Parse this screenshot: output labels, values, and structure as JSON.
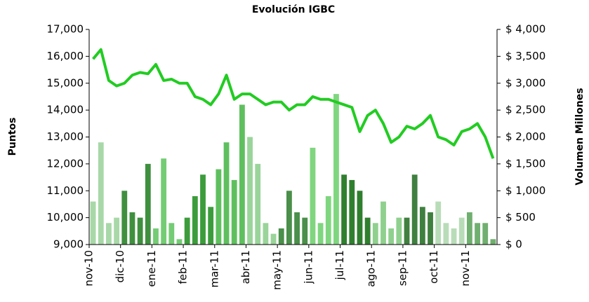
{
  "chart_data": {
    "type": "bar_line",
    "title": "Evolución IGBC",
    "ylabel": "Puntos",
    "y2label": "Volumen Millones",
    "categories": [
      "nov-10",
      null,
      null,
      null,
      "dic-10",
      null,
      null,
      null,
      "ene-11",
      null,
      null,
      null,
      "feb-11",
      null,
      null,
      null,
      "mar-11",
      null,
      null,
      null,
      "abr-11",
      null,
      null,
      null,
      "may-11",
      null,
      null,
      null,
      "jun-11",
      null,
      null,
      null,
      "jul-11",
      null,
      null,
      null,
      "ago-11",
      null,
      null,
      null,
      "sep-11",
      null,
      null,
      null,
      "oct-11",
      null,
      null,
      null,
      "nov-11",
      null,
      null,
      null
    ],
    "series": [
      {
        "name": "Volumen",
        "type": "bar",
        "axis": "y2",
        "colors": [
          "#a8d8a8",
          "#a8d8a8",
          "#a8d8a8",
          "#a8d8a8",
          "#3f8f3f",
          "#3f8f3f",
          "#3f8f3f",
          "#3f8f3f",
          "#74cc74",
          "#74cc74",
          "#74cc74",
          "#74cc74",
          "#3c9c3c",
          "#3c9c3c",
          "#3c9c3c",
          "#3c9c3c",
          "#5fbf5f",
          "#5fbf5f",
          "#5fbf5f",
          "#5fbf5f",
          "#9ad49a",
          "#9ad49a",
          "#9ad49a",
          "#9ad49a",
          "#4a8f4a",
          "#4a8f4a",
          "#4a8f4a",
          "#4a8f4a",
          "#7fd67f",
          "#7fd67f",
          "#7fd67f",
          "#7fd67f",
          "#2f7f2f",
          "#2f7f2f",
          "#2f7f2f",
          "#2f7f2f",
          "#8fd08f",
          "#8fd08f",
          "#8fd08f",
          "#8fd08f",
          "#3f7f3f",
          "#3f7f3f",
          "#3f7f3f",
          "#3f7f3f",
          "#b8dcb8",
          "#b8dcb8",
          "#b8dcb8",
          "#b8dcb8",
          "#6faf6f",
          "#6faf6f",
          "#6faf6f",
          "#6faf6f"
        ],
        "values": [
          800,
          1900,
          400,
          500,
          1000,
          600,
          500,
          1500,
          300,
          1600,
          400,
          100,
          500,
          900,
          1300,
          700,
          1400,
          1900,
          1200,
          2600,
          2000,
          1500,
          400,
          200,
          300,
          1000,
          600,
          500,
          1800,
          400,
          900,
          2800,
          1300,
          1200,
          1000,
          500,
          400,
          800,
          300,
          500,
          500,
          1300,
          700,
          600,
          800,
          400,
          300,
          500,
          600,
          400,
          400,
          100
        ]
      },
      {
        "name": "IGBC",
        "type": "line",
        "color": "#22cc22",
        "values": [
          15900,
          16250,
          15100,
          14900,
          15000,
          15300,
          15400,
          15350,
          15700,
          15100,
          15150,
          15000,
          15000,
          14500,
          14400,
          14200,
          14600,
          15300,
          14400,
          14600,
          14600,
          14400,
          14200,
          14300,
          14300,
          14000,
          14200,
          14200,
          14500,
          14400,
          14400,
          14300,
          14200,
          14100,
          13200,
          13800,
          14000,
          13500,
          12800,
          13000,
          13400,
          13300,
          13500,
          13800,
          13000,
          12900,
          12700,
          13200,
          13300,
          13500,
          13000,
          12200
        ]
      }
    ],
    "ylim": [
      9000,
      17000
    ],
    "yticks": [
      {
        "value": 9000,
        "label": "9,000"
      },
      {
        "value": 10000,
        "label": "10,000"
      },
      {
        "value": 11000,
        "label": "11,000"
      },
      {
        "value": 12000,
        "label": "12,000"
      },
      {
        "value": 13000,
        "label": "13,000"
      },
      {
        "value": 14000,
        "label": "14,000"
      },
      {
        "value": 15000,
        "label": "15,000"
      },
      {
        "value": 16000,
        "label": "16,000"
      },
      {
        "value": 17000,
        "label": "17,000"
      }
    ],
    "y2lim": [
      0,
      4000
    ],
    "y2ticks": [
      {
        "value": 0,
        "label": "$ 0"
      },
      {
        "value": 500,
        "label": "$ 500"
      },
      {
        "value": 1000,
        "label": "$ 1,000"
      },
      {
        "value": 1500,
        "label": "$ 1,500"
      },
      {
        "value": 2000,
        "label": "$ 2,000"
      },
      {
        "value": 2500,
        "label": "$ 2,500"
      },
      {
        "value": 3000,
        "label": "$ 3,000"
      },
      {
        "value": 3500,
        "label": "$ 3,500"
      },
      {
        "value": 4000,
        "label": "$ 4,000"
      }
    ]
  }
}
